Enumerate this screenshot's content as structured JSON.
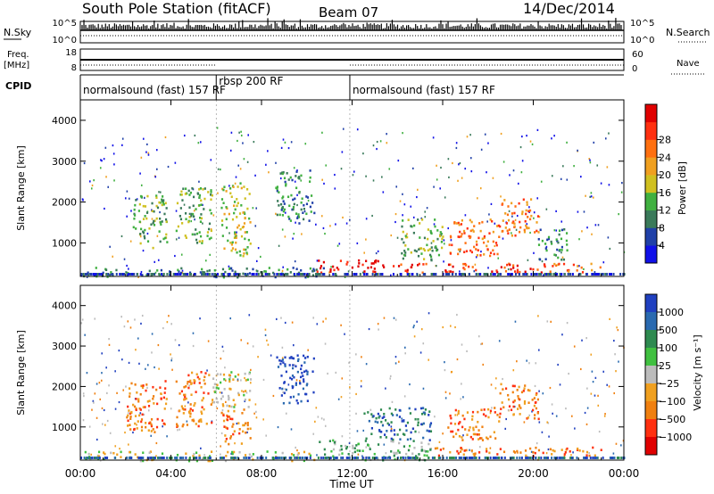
{
  "header": {
    "station": "South Pole Station (fitACF)",
    "beam": "Beam 07",
    "date": "14/Dec/2014"
  },
  "strip": {
    "nsky_label": "N.Sky",
    "nsky_ticks": [
      "10^5",
      "10^0"
    ],
    "nsearch_label": "N.Search",
    "nsearch_ticks": [
      "10^5",
      "10^0"
    ],
    "freq_label_line1": "Freq.",
    "freq_label_line2": "[MHz]",
    "freq_ticks": [
      "18",
      "8"
    ],
    "nave_label": "Nave",
    "nave_ticks": [
      "60",
      "0"
    ],
    "cpid_label": "CPID",
    "cpid_segments": [
      {
        "label": "normalsound (fast) 157 RF",
        "start_h": 0,
        "end_h": 6
      },
      {
        "label": "rbsp 200 RF",
        "start_h": 6,
        "end_h": 11.9
      },
      {
        "label": "normalsound (fast) 157 RF",
        "start_h": 11.9,
        "end_h": 24
      }
    ]
  },
  "chart_data": [
    {
      "type": "heatmap",
      "ylabel": "Slant Range [km]",
      "yticks": [
        "1000",
        "2000",
        "3000",
        "4000"
      ],
      "ylim": [
        180,
        4500
      ],
      "xlim_h": [
        0,
        24
      ],
      "colorbar": {
        "label": "Power [dB]",
        "ticks": [
          "4",
          "8",
          "12",
          "16",
          "20",
          "24",
          "28"
        ],
        "colors": [
          "#1010e8",
          "#2040a8",
          "#3a7a5a",
          "#40b040",
          "#d0c020",
          "#f0a020",
          "#ff7010",
          "#ff3010",
          "#e00000"
        ]
      },
      "echo_regions": [
        {
          "t0": 0.1,
          "t1": 11.5,
          "r0": 180,
          "r1": 420,
          "level": 2
        },
        {
          "t0": 10.4,
          "t1": 13.8,
          "r0": 300,
          "r1": 600,
          "level": 8
        },
        {
          "t0": 13.8,
          "t1": 20.8,
          "r0": 300,
          "r1": 520,
          "level": 7
        },
        {
          "t0": 20.8,
          "t1": 23.0,
          "r0": 300,
          "r1": 520,
          "level": 6
        },
        {
          "t0": 2.2,
          "t1": 3.8,
          "r0": 900,
          "r1": 2200,
          "level": 3
        },
        {
          "t0": 4.2,
          "t1": 5.8,
          "r0": 1000,
          "r1": 2400,
          "level": 3
        },
        {
          "t0": 6.2,
          "t1": 7.5,
          "r0": 700,
          "r1": 2500,
          "level": 4
        },
        {
          "t0": 8.6,
          "t1": 10.3,
          "r0": 1500,
          "r1": 2800,
          "level": 2
        },
        {
          "t0": 14.0,
          "t1": 16.0,
          "r0": 600,
          "r1": 1600,
          "level": 3
        },
        {
          "t0": 16.2,
          "t1": 18.5,
          "r0": 700,
          "r1": 1600,
          "level": 6
        },
        {
          "t0": 18.5,
          "t1": 20.2,
          "r0": 1200,
          "r1": 2100,
          "level": 6
        },
        {
          "t0": 20.2,
          "t1": 21.5,
          "r0": 600,
          "r1": 1400,
          "level": 2
        }
      ]
    },
    {
      "type": "heatmap",
      "ylabel": "Slant Range [km]",
      "yticks": [
        "1000",
        "2000",
        "3000",
        "4000"
      ],
      "ylim": [
        180,
        4500
      ],
      "xlim_h": [
        0,
        24
      ],
      "xticks": [
        "00:00",
        "04:00",
        "08:00",
        "12:00",
        "16:00",
        "20:00",
        "00:00"
      ],
      "xlabel": "Time UT",
      "colorbar": {
        "label": "Velocity [m s⁻¹]",
        "ticks": [
          "1000",
          "500",
          "100",
          "25",
          "−25",
          "−100",
          "−500",
          "−1000"
        ],
        "colors": [
          "#2040c0",
          "#2a6ab0",
          "#2e8a50",
          "#40c040",
          "#bcbcbc",
          "#f0a020",
          "#f08010",
          "#ff3010",
          "#e00000"
        ]
      },
      "echo_regions": [
        {
          "t0": 0.1,
          "t1": 10.4,
          "r0": 180,
          "r1": 420,
          "level": 4
        },
        {
          "t0": 10.4,
          "t1": 15.5,
          "r0": 200,
          "r1": 700,
          "level": 3
        },
        {
          "t0": 15.5,
          "t1": 20.5,
          "r0": 300,
          "r1": 520,
          "level": 6
        },
        {
          "t0": 20.5,
          "t1": 23.0,
          "r0": 300,
          "r1": 520,
          "level": 6
        },
        {
          "t0": 2.0,
          "t1": 3.8,
          "r0": 900,
          "r1": 2200,
          "level": 6
        },
        {
          "t0": 4.2,
          "t1": 5.8,
          "r0": 1000,
          "r1": 2400,
          "level": 6
        },
        {
          "t0": 5.8,
          "t1": 7.5,
          "r0": 1500,
          "r1": 2400,
          "level": 4
        },
        {
          "t0": 6.2,
          "t1": 7.5,
          "r0": 600,
          "r1": 1500,
          "level": 6
        },
        {
          "t0": 8.6,
          "t1": 10.3,
          "r0": 1600,
          "r1": 2800,
          "level": 0
        },
        {
          "t0": 12.5,
          "t1": 15.5,
          "r0": 700,
          "r1": 1500,
          "level": 1
        },
        {
          "t0": 16.2,
          "t1": 18.5,
          "r0": 700,
          "r1": 1500,
          "level": 6
        },
        {
          "t0": 18.5,
          "t1": 20.2,
          "r0": 1200,
          "r1": 2100,
          "level": 6
        }
      ]
    }
  ]
}
